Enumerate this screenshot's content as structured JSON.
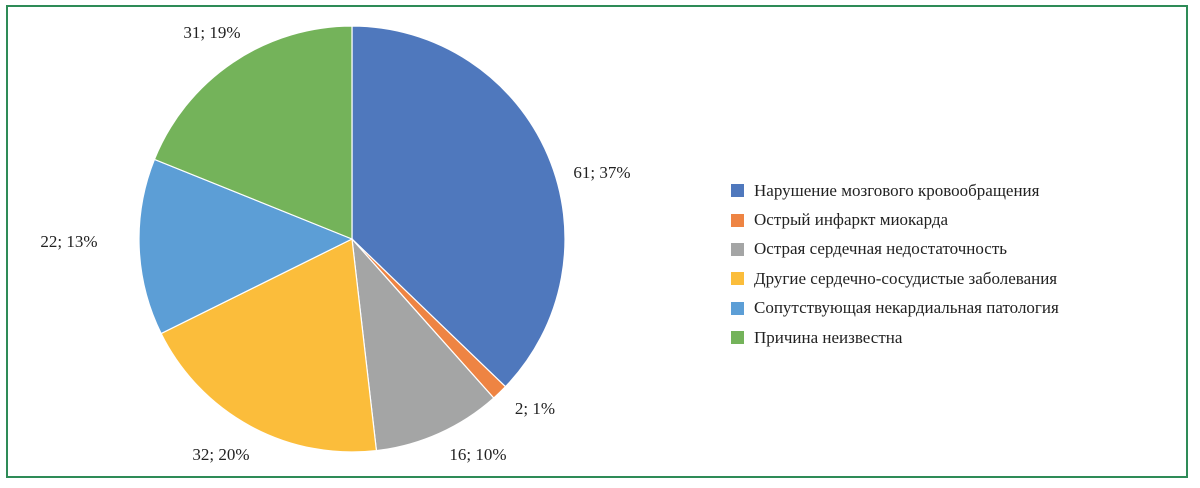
{
  "chart_data": {
    "type": "pie",
    "categories": [
      "Нарушение мозгового кровообращения",
      "Острый инфаркт миокарда",
      "Острая сердечная недостаточность",
      "Другие сердечно-сосудистые заболевания",
      "Сопутствующая некардиальная патология",
      "Причина неизвестна"
    ],
    "values": [
      61,
      2,
      16,
      32,
      22,
      31
    ],
    "percents": [
      37,
      1,
      10,
      20,
      13,
      19
    ],
    "data_labels": [
      "61; 37%",
      "2; 1%",
      "16; 10%",
      "32; 20%",
      "22; 13%",
      "31; 19%"
    ],
    "colors": [
      "#4f78bd",
      "#ee8443",
      "#a4a5a5",
      "#fbbd3b",
      "#5c9ed6",
      "#74b35a"
    ],
    "legend_position": "right"
  }
}
